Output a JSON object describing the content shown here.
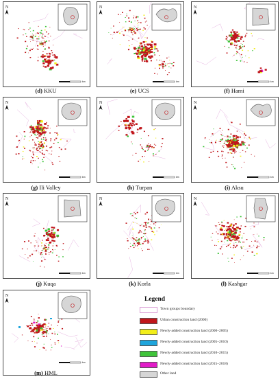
{
  "panels": [
    {
      "id": "d",
      "name": "KKU",
      "caption_letter": "(d)"
    },
    {
      "id": "e",
      "name": "UCS",
      "caption_letter": "(e)"
    },
    {
      "id": "f",
      "name": "Hami",
      "caption_letter": "(f)"
    },
    {
      "id": "g",
      "name": "Ili Valley",
      "caption_letter": "(g)"
    },
    {
      "id": "h",
      "name": "Turpan",
      "caption_letter": "(h)"
    },
    {
      "id": "i",
      "name": "Aksu",
      "caption_letter": "(i)"
    },
    {
      "id": "j",
      "name": "Kuqa",
      "caption_letter": "(j)"
    },
    {
      "id": "k",
      "name": "Korla",
      "caption_letter": "(k)"
    },
    {
      "id": "l",
      "name": "Kashgar",
      "caption_letter": "(l)"
    },
    {
      "id": "m",
      "name": "HML",
      "caption_letter": "(m)"
    }
  ],
  "north_label": "N",
  "scale_label": "km",
  "legend": {
    "title": "Legend",
    "items": [
      {
        "label": "Town groups boundary",
        "color": "#ffffff",
        "type": "boundary"
      },
      {
        "label": "Urban construction land  (2000)",
        "color": "#c0161b"
      },
      {
        "label": "Newly-added construction land  (2000–2005)",
        "color": "#f2ee1a"
      },
      {
        "label": "Newly-added construction land  (2005–2010)",
        "color": "#1fa5dc"
      },
      {
        "label": "Newly-added construction land  (2010–2015)",
        "color": "#3fc43a"
      },
      {
        "label": "Newly-added construction land  (2015–2018)",
        "color": "#e21cc8"
      },
      {
        "label": "Other land",
        "color": "#d6d6d6"
      }
    ]
  }
}
